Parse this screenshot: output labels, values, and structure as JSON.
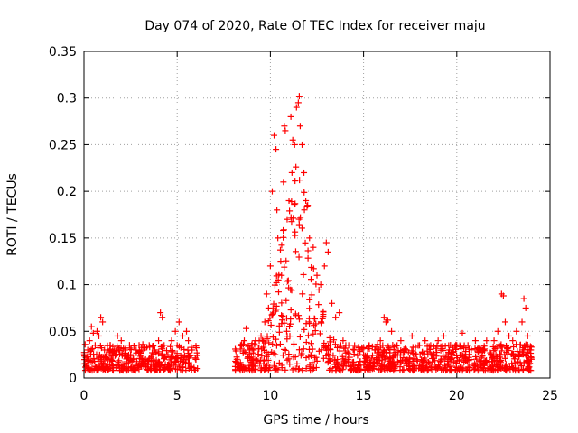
{
  "chart_data": {
    "type": "scatter",
    "title": "Day 074 of 2020, Rate Of TEC Index for receiver maju",
    "xlabel": "GPS time / hours",
    "ylabel": "ROTI / TECUs",
    "xlim": [
      0,
      25
    ],
    "ylim": [
      0,
      0.35
    ],
    "grid": true,
    "marker": "+",
    "series_color": "#ff0000",
    "x_ticks": [
      {
        "value": 0,
        "label": "0"
      },
      {
        "value": 5,
        "label": "5"
      },
      {
        "value": 10,
        "label": "10"
      },
      {
        "value": 15,
        "label": "15"
      },
      {
        "value": 20,
        "label": "20"
      },
      {
        "value": 25,
        "label": "25"
      }
    ],
    "y_ticks": [
      {
        "value": 0,
        "label": "0"
      },
      {
        "value": 0.05,
        "label": "0.05"
      },
      {
        "value": 0.1,
        "label": "0.1"
      },
      {
        "value": 0.15,
        "label": "0.15"
      },
      {
        "value": 0.2,
        "label": "0.2"
      },
      {
        "value": 0.25,
        "label": "0.25"
      },
      {
        "value": 0.3,
        "label": "0.3"
      },
      {
        "value": 0.35,
        "label": "0.35"
      }
    ],
    "data_gap_hours": [
      6.1,
      8.1
    ],
    "points": [
      [
        0.0,
        0.015
      ],
      [
        0.1,
        0.022
      ],
      [
        0.2,
        0.03
      ],
      [
        0.3,
        0.04
      ],
      [
        0.4,
        0.055
      ],
      [
        0.5,
        0.048
      ],
      [
        0.6,
        0.035
      ],
      [
        0.7,
        0.05
      ],
      [
        0.8,
        0.045
      ],
      [
        0.9,
        0.065
      ],
      [
        1.0,
        0.06
      ],
      [
        1.1,
        0.03
      ],
      [
        1.2,
        0.025
      ],
      [
        1.4,
        0.035
      ],
      [
        1.6,
        0.028
      ],
      [
        1.8,
        0.045
      ],
      [
        2.0,
        0.04
      ],
      [
        2.2,
        0.03
      ],
      [
        2.5,
        0.025
      ],
      [
        2.8,
        0.03
      ],
      [
        3.0,
        0.028
      ],
      [
        3.2,
        0.03
      ],
      [
        3.5,
        0.035
      ],
      [
        3.8,
        0.03
      ],
      [
        4.0,
        0.04
      ],
      [
        4.1,
        0.07
      ],
      [
        4.2,
        0.065
      ],
      [
        4.3,
        0.035
      ],
      [
        4.5,
        0.025
      ],
      [
        4.7,
        0.04
      ],
      [
        4.9,
        0.05
      ],
      [
        5.0,
        0.035
      ],
      [
        5.1,
        0.06
      ],
      [
        5.3,
        0.045
      ],
      [
        5.5,
        0.05
      ],
      [
        5.6,
        0.04
      ],
      [
        5.8,
        0.03
      ],
      [
        6.0,
        0.02
      ],
      [
        8.2,
        0.02
      ],
      [
        8.4,
        0.035
      ],
      [
        8.6,
        0.04
      ],
      [
        8.7,
        0.053
      ],
      [
        8.9,
        0.03
      ],
      [
        9.2,
        0.04
      ],
      [
        9.5,
        0.045
      ],
      [
        9.7,
        0.06
      ],
      [
        9.8,
        0.09
      ],
      [
        9.9,
        0.075
      ],
      [
        10.0,
        0.12
      ],
      [
        10.1,
        0.2
      ],
      [
        10.2,
        0.26
      ],
      [
        10.3,
        0.245
      ],
      [
        10.35,
        0.18
      ],
      [
        10.4,
        0.15
      ],
      [
        10.6,
        0.11
      ],
      [
        10.7,
        0.21
      ],
      [
        10.75,
        0.27
      ],
      [
        10.8,
        0.265
      ],
      [
        10.9,
        0.17
      ],
      [
        11.0,
        0.19
      ],
      [
        11.1,
        0.28
      ],
      [
        11.2,
        0.255
      ],
      [
        11.3,
        0.25
      ],
      [
        11.4,
        0.29
      ],
      [
        11.5,
        0.295
      ],
      [
        11.55,
        0.302
      ],
      [
        11.6,
        0.27
      ],
      [
        11.7,
        0.25
      ],
      [
        11.8,
        0.22
      ],
      [
        11.9,
        0.19
      ],
      [
        12.0,
        0.185
      ],
      [
        12.1,
        0.15
      ],
      [
        12.3,
        0.14
      ],
      [
        12.5,
        0.11
      ],
      [
        12.7,
        0.1
      ],
      [
        12.9,
        0.12
      ],
      [
        13.0,
        0.145
      ],
      [
        13.1,
        0.135
      ],
      [
        13.3,
        0.08
      ],
      [
        13.5,
        0.065
      ],
      [
        13.7,
        0.07
      ],
      [
        13.9,
        0.04
      ],
      [
        14.2,
        0.035
      ],
      [
        14.5,
        0.03
      ],
      [
        14.8,
        0.03
      ],
      [
        15.0,
        0.025
      ],
      [
        15.3,
        0.035
      ],
      [
        15.6,
        0.03
      ],
      [
        15.9,
        0.04
      ],
      [
        16.1,
        0.065
      ],
      [
        16.2,
        0.06
      ],
      [
        16.3,
        0.062
      ],
      [
        16.5,
        0.05
      ],
      [
        16.8,
        0.035
      ],
      [
        17.0,
        0.04
      ],
      [
        17.3,
        0.03
      ],
      [
        17.6,
        0.045
      ],
      [
        18.0,
        0.035
      ],
      [
        18.3,
        0.04
      ],
      [
        18.6,
        0.035
      ],
      [
        19.0,
        0.04
      ],
      [
        19.3,
        0.045
      ],
      [
        19.6,
        0.03
      ],
      [
        20.0,
        0.035
      ],
      [
        20.3,
        0.048
      ],
      [
        20.6,
        0.035
      ],
      [
        21.0,
        0.04
      ],
      [
        21.3,
        0.03
      ],
      [
        21.6,
        0.04
      ],
      [
        22.0,
        0.04
      ],
      [
        22.2,
        0.05
      ],
      [
        22.4,
        0.09
      ],
      [
        22.5,
        0.088
      ],
      [
        22.6,
        0.06
      ],
      [
        22.8,
        0.045
      ],
      [
        23.0,
        0.04
      ],
      [
        23.2,
        0.05
      ],
      [
        23.5,
        0.06
      ],
      [
        23.6,
        0.085
      ],
      [
        23.7,
        0.075
      ],
      [
        23.8,
        0.045
      ],
      [
        23.9,
        0.03
      ],
      [
        24.0,
        0.02
      ]
    ]
  }
}
